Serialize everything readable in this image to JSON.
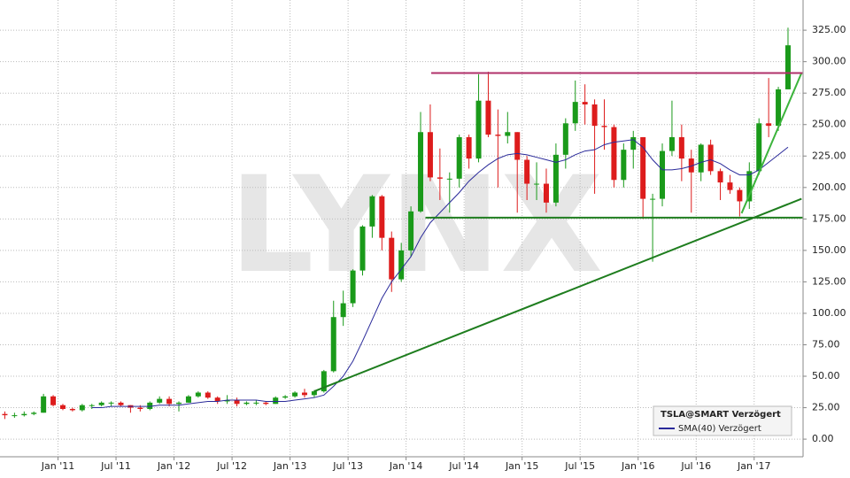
{
  "chart_data": {
    "type": "candlestick",
    "watermark": "LYNX",
    "categories": [
      null,
      null,
      null,
      null,
      null,
      null,
      "Jan '11",
      null,
      null,
      null,
      null,
      null,
      "Jul '11",
      null,
      null,
      null,
      null,
      null,
      "Jan '12",
      null,
      null,
      null,
      null,
      null,
      "Jul '12",
      null,
      null,
      null,
      null,
      null,
      "Jan '13",
      null,
      null,
      null,
      null,
      null,
      "Jul '13",
      null,
      null,
      null,
      null,
      null,
      "Jan '14",
      null,
      null,
      null,
      null,
      null,
      "Jul '14",
      null,
      null,
      null,
      null,
      null,
      "Jan '15",
      null,
      null,
      null,
      null,
      null,
      "Jul '15",
      null,
      null,
      null,
      null,
      null,
      "Jan '16",
      null,
      null,
      null,
      null,
      null,
      "Jul '16",
      null,
      null,
      null,
      null,
      null,
      "Jan '17",
      null,
      null,
      null
    ],
    "open": [
      20,
      19,
      19,
      20,
      21,
      34,
      27,
      24,
      23,
      27,
      27,
      29,
      29,
      27,
      25,
      24,
      29,
      32,
      28,
      29,
      34,
      37,
      33,
      30,
      31,
      28,
      29,
      29,
      28,
      33,
      34,
      37,
      35,
      38,
      54,
      97,
      108,
      134,
      169,
      193,
      160,
      127,
      150,
      181,
      244,
      208,
      207,
      207,
      240,
      223,
      269,
      242,
      241,
      244,
      222,
      203,
      203,
      188,
      226,
      251,
      268,
      266,
      249,
      248,
      206,
      230,
      240,
      191,
      191,
      229,
      240,
      223,
      212,
      234,
      213,
      204,
      198,
      189,
      213,
      251,
      249,
      278
    ],
    "high": [
      22,
      21,
      22,
      22,
      36,
      35,
      28,
      25,
      28,
      28,
      30,
      30,
      30,
      27,
      27,
      30,
      34,
      34,
      30,
      35,
      38,
      38,
      34,
      35,
      33,
      30,
      31,
      30,
      34,
      35,
      38,
      40,
      39,
      55,
      110,
      118,
      135,
      170,
      194,
      194,
      165,
      156,
      185,
      260,
      266,
      231,
      212,
      242,
      242,
      290,
      292,
      262,
      260,
      244,
      225,
      220,
      215,
      235,
      255,
      285,
      282,
      270,
      270,
      250,
      235,
      245,
      240,
      195,
      235,
      269,
      250,
      230,
      235,
      238,
      215,
      210,
      200,
      220,
      255,
      287,
      280,
      327
    ],
    "low": [
      16,
      17,
      18,
      19,
      21,
      26,
      23,
      22,
      22,
      24,
      26,
      26,
      26,
      21,
      22,
      23,
      28,
      26,
      22,
      29,
      33,
      32,
      28,
      28,
      26,
      27,
      27,
      27,
      28,
      32,
      33,
      33,
      33,
      37,
      53,
      90,
      105,
      130,
      160,
      150,
      117,
      125,
      145,
      180,
      205,
      190,
      180,
      200,
      215,
      220,
      240,
      200,
      235,
      180,
      190,
      190,
      180,
      185,
      215,
      245,
      250,
      195,
      230,
      200,
      200,
      215,
      175,
      141,
      185,
      225,
      205,
      180,
      205,
      210,
      190,
      195,
      177,
      183,
      210,
      240,
      245,
      278
    ],
    "close": [
      19,
      19,
      20,
      21,
      34,
      27,
      24,
      23,
      27,
      27,
      29,
      29,
      27,
      25,
      24,
      29,
      32,
      28,
      29,
      34,
      37,
      33,
      30,
      31,
      28,
      29,
      29,
      28,
      33,
      34,
      37,
      35,
      38,
      54,
      97,
      108,
      134,
      169,
      193,
      160,
      127,
      150,
      181,
      244,
      208,
      207,
      207,
      240,
      223,
      269,
      242,
      241,
      244,
      222,
      203,
      203,
      188,
      226,
      251,
      268,
      266,
      249,
      248,
      206,
      230,
      240,
      191,
      191,
      229,
      240,
      223,
      212,
      234,
      213,
      204,
      198,
      189,
      213,
      251,
      249,
      278,
      313
    ],
    "up_color": "#1a9a1a",
    "down_color": "#dd1c1c",
    "sma": {
      "name": "SMA(40) Verzögert",
      "color": "#2a2a9a",
      "values": [
        null,
        null,
        null,
        null,
        null,
        null,
        null,
        null,
        null,
        25,
        25,
        26,
        26,
        26,
        26,
        26,
        27,
        27,
        27,
        28,
        29,
        30,
        30,
        31,
        31,
        31,
        31,
        30,
        30,
        30,
        31,
        32,
        33,
        35,
        42,
        50,
        62,
        78,
        95,
        112,
        125,
        135,
        145,
        160,
        172,
        180,
        188,
        196,
        205,
        212,
        218,
        223,
        226,
        227,
        226,
        224,
        222,
        220,
        222,
        226,
        229,
        230,
        234,
        236,
        237,
        238,
        232,
        222,
        214,
        214,
        215,
        217,
        220,
        222,
        219,
        214,
        210,
        210,
        214,
        220,
        226,
        232
      ]
    },
    "series_name": "TSLA@SMART Verzögert",
    "lines": [
      {
        "color": "#1e7d1e",
        "from": [
          32.5,
          38
        ],
        "to": [
          82.9,
          191
        ]
      },
      {
        "color": "#3cb43c",
        "from": [
          76.7,
          179.5
        ],
        "to": [
          82.9,
          291
        ]
      },
      {
        "color": "#1e7d1e",
        "from": [
          44,
          176
        ],
        "to": [
          83,
          176
        ]
      },
      {
        "color": "#b0306a",
        "from": [
          44.6,
          291
        ],
        "to": [
          83,
          291
        ]
      }
    ],
    "ylim": [
      -14,
      349
    ],
    "yticks": [
      {
        "value": 0,
        "label": "0.00"
      },
      {
        "value": 25,
        "label": "25.00"
      },
      {
        "value": 50,
        "label": "50.00"
      },
      {
        "value": 75,
        "label": "75.00"
      },
      {
        "value": 100,
        "label": "100.00"
      },
      {
        "value": 125,
        "label": "125.00"
      },
      {
        "value": 150,
        "label": "150.00"
      },
      {
        "value": 175,
        "label": "175.00"
      },
      {
        "value": 200,
        "label": "200.00"
      },
      {
        "value": 225,
        "label": "225.00"
      },
      {
        "value": 250,
        "label": "250.00"
      },
      {
        "value": 275,
        "label": "275.00"
      },
      {
        "value": 300,
        "label": "300.00"
      },
      {
        "value": 325,
        "label": "325.00"
      }
    ],
    "grid": true
  }
}
